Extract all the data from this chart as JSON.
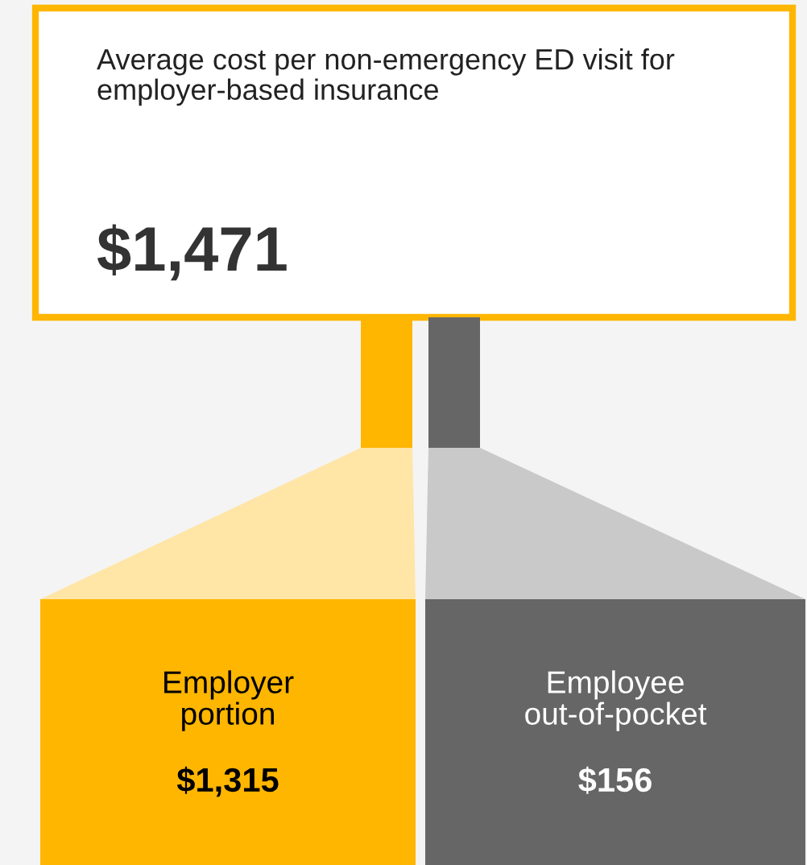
{
  "chart_data": {
    "type": "other",
    "title": "Average cost per non-emergency ED visit for employer-based insurance",
    "categories": [
      "Employer portion",
      "Employee out-of-pocket"
    ],
    "values": [
      1315,
      156
    ],
    "value_labels": [
      "$1,315",
      "$156"
    ],
    "colors": [
      "#ffb600",
      "#666666"
    ],
    "totals": [
      "$1,471"
    ]
  }
}
